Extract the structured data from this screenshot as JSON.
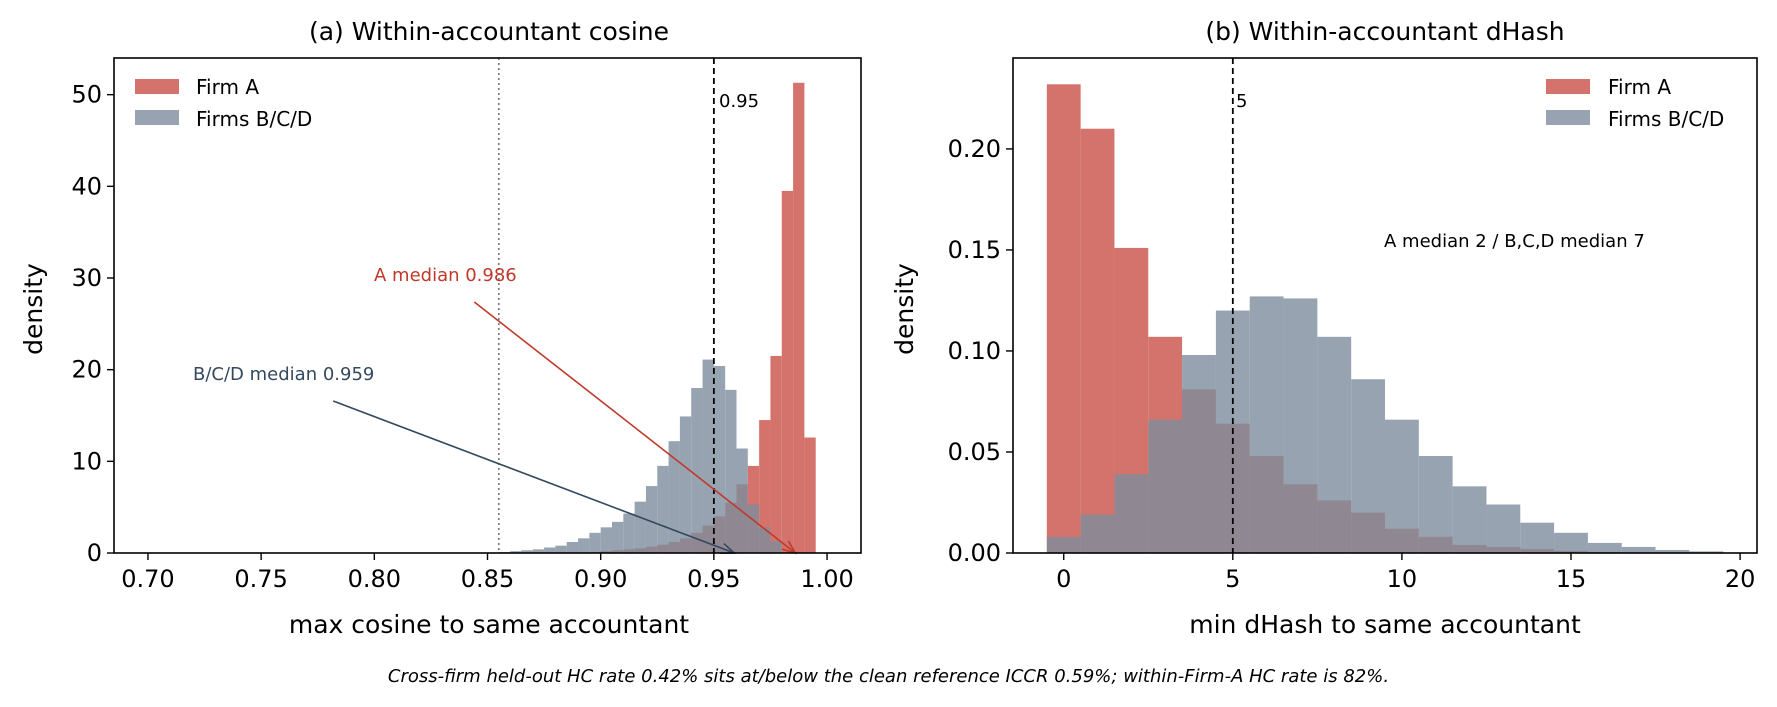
{
  "caption": "Cross-firm held-out HC rate 0.42% sits at/below the clean reference ICCR 0.59%; within-Firm-A HC rate is 82%.",
  "colors": {
    "firm_a": "#d4736b",
    "firms_bcd": "#7d8c9c",
    "overlap": "#8b5a63",
    "a_annot": "#c0392b",
    "bcd_annot": "#34495e"
  },
  "chart_data": [
    {
      "type": "histogram",
      "title": "(a) Within-accountant cosine",
      "xlabel": "max cosine to same accountant",
      "ylabel": "density",
      "xlim": [
        0.685,
        1.015
      ],
      "ylim": [
        0,
        54
      ],
      "xticks": [
        0.7,
        0.75,
        0.8,
        0.85,
        0.9,
        0.95,
        1.0
      ],
      "xtick_labels": [
        "0.70",
        "0.75",
        "0.80",
        "0.85",
        "0.90",
        "0.95",
        "1.00"
      ],
      "yticks": [
        0,
        10,
        20,
        30,
        40,
        50
      ],
      "ytick_labels": [
        "0",
        "10",
        "20",
        "30",
        "40",
        "50"
      ],
      "legend": {
        "position": "top-left",
        "entries": [
          "Firm A",
          "Firms B/C/D"
        ]
      },
      "bin_edges": [
        0.855,
        0.86,
        0.865,
        0.87,
        0.875,
        0.88,
        0.885,
        0.89,
        0.895,
        0.9,
        0.905,
        0.91,
        0.915,
        0.92,
        0.925,
        0.93,
        0.935,
        0.94,
        0.945,
        0.95,
        0.955,
        0.96,
        0.965,
        0.97,
        0.975,
        0.98,
        0.985,
        0.99,
        0.995,
        1.0
      ],
      "series": [
        {
          "name": "Firm A",
          "values": [
            0,
            0,
            0,
            0,
            0,
            0,
            0,
            0,
            0.1,
            0.2,
            0.3,
            0.4,
            0.5,
            0.7,
            0.9,
            1.2,
            1.6,
            2.2,
            3.0,
            4.0,
            5.5,
            7.5,
            9.5,
            14.5,
            21.5,
            39.5,
            51.3,
            12.6,
            0
          ]
        },
        {
          "name": "Firms B/C/D",
          "values": [
            0.1,
            0.2,
            0.3,
            0.4,
            0.6,
            0.8,
            1.2,
            1.6,
            2.2,
            2.8,
            3.4,
            4.3,
            5.6,
            7.3,
            9.5,
            12.2,
            14.9,
            18.0,
            21.1,
            20.4,
            17.8,
            11.4,
            5.3,
            2.8,
            1.3,
            0,
            0,
            0,
            0
          ]
        }
      ],
      "vlines": [
        {
          "x": 0.855,
          "style": "dotted"
        },
        {
          "x": 0.95,
          "style": "dashed",
          "label": "0.95"
        }
      ],
      "annotations": [
        {
          "text": "A median 0.986",
          "text_x": 0.8,
          "text_y": 30.0,
          "arrow_to_x": 0.986,
          "arrow_to_y": 0,
          "series": "Firm A"
        },
        {
          "text": "B/C/D median 0.959",
          "text_x": 0.72,
          "text_y": 19.2,
          "arrow_to_x": 0.959,
          "arrow_to_y": 0,
          "series": "Firms B/C/D"
        }
      ]
    },
    {
      "type": "histogram",
      "title": "(b) Within-accountant dHash",
      "xlabel": "min dHash to same accountant",
      "ylabel": "density",
      "xlim": [
        -1.5,
        20.5
      ],
      "ylim": [
        0,
        0.245
      ],
      "xticks": [
        0,
        5,
        10,
        15,
        20
      ],
      "xtick_labels": [
        "0",
        "5",
        "10",
        "15",
        "20"
      ],
      "yticks": [
        0,
        0.05,
        0.1,
        0.15,
        0.2
      ],
      "ytick_labels": [
        "0.00",
        "0.05",
        "0.10",
        "0.15",
        "0.20"
      ],
      "legend": {
        "position": "top-right",
        "entries": [
          "Firm A",
          "Firms B/C/D"
        ]
      },
      "bin_edges": [
        -0.5,
        0.5,
        1.5,
        2.5,
        3.5,
        4.5,
        5.5,
        6.5,
        7.5,
        8.5,
        9.5,
        10.5,
        11.5,
        12.5,
        13.5,
        14.5,
        15.5,
        16.5,
        17.5,
        18.5,
        19.5
      ],
      "series": [
        {
          "name": "Firm A",
          "values": [
            0.232,
            0.21,
            0.151,
            0.107,
            0.081,
            0.064,
            0.048,
            0.034,
            0.026,
            0.02,
            0.012,
            0.008,
            0.004,
            0.003,
            0.002,
            0.001,
            0.0005,
            0.0003,
            0.0001,
            0.0001
          ]
        },
        {
          "name": "Firms B/C/D",
          "values": [
            0.008,
            0.019,
            0.039,
            0.066,
            0.098,
            0.12,
            0.127,
            0.126,
            0.107,
            0.086,
            0.066,
            0.048,
            0.033,
            0.024,
            0.015,
            0.01,
            0.005,
            0.003,
            0.0015,
            0.0008
          ]
        }
      ],
      "vlines": [
        {
          "x": 5,
          "style": "dashed",
          "label": "5"
        }
      ],
      "annotations": [
        {
          "text": "A median 2 / B,C,D median 7",
          "text_x": 9.5,
          "text_y": 0.151
        }
      ]
    }
  ]
}
